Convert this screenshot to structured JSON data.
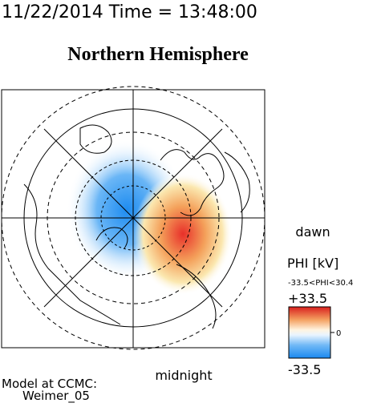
{
  "header": {
    "timestamp": "11/22/2014 Time = 13:48:00"
  },
  "title": "Northern Hemisphere",
  "map": {
    "dawn_label": "dawn",
    "midnight_label": "midnight"
  },
  "colorbar": {
    "title": "PHI [kV]",
    "range_text": "-33.5<PHI<30.4",
    "max_label": "+33.5",
    "mid_label": "0",
    "min_label": "-33.5"
  },
  "footer": {
    "line1": "Model at CCMC:",
    "line2": "Weimer_05"
  }
}
